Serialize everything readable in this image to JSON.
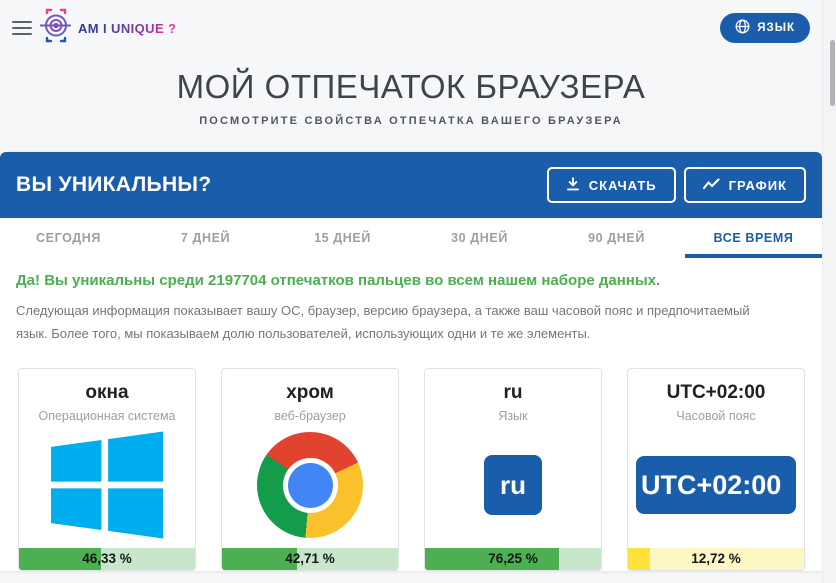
{
  "header": {
    "brand": "AM I UNIQUE ?",
    "language_button": "ЯЗЫК"
  },
  "hero": {
    "title": "МОЙ ОТПЕЧАТОК БРАУЗЕРА",
    "subtitle": "ПОСМОТРИТЕ СВОЙСТВА ОТПЕЧАТКА ВАШЕГО БРАУЗЕРА"
  },
  "panel": {
    "title": "ВЫ УНИКАЛЬНЫ?",
    "download_button": "СКАЧАТЬ",
    "chart_button": "ГРАФИК",
    "tabs": [
      {
        "label": "СЕГОДНЯ",
        "active": false
      },
      {
        "label": "7 ДНЕЙ",
        "active": false
      },
      {
        "label": "15 ДНЕЙ",
        "active": false
      },
      {
        "label": "30 ДНЕЙ",
        "active": false
      },
      {
        "label": "90 ДНЕЙ",
        "active": false
      },
      {
        "label": "ВСЕ ВРЕМЯ",
        "active": true
      }
    ],
    "result_message": "Да! Вы уникальны среди 2197704 отпечатков пальцев во всем нашем наборе данных.",
    "fingerprint_count": 2197704,
    "description": "Следующая информация показывает вашу ОС, браузер, версию браузера, а также ваш часовой пояс и предпочитаемый язык. Более того, мы показываем долю пользователей, использующих одни и те же элементы."
  },
  "cards": [
    {
      "title": "окна",
      "subtitle": "Операционная система",
      "icon": "windows-logo",
      "value": "46,33 %",
      "percent": 46.33,
      "scheme": "green"
    },
    {
      "title": "хром",
      "subtitle": "веб-браузер",
      "icon": "chrome-logo",
      "value": "42,71 %",
      "percent": 42.71,
      "scheme": "green"
    },
    {
      "title": "ru",
      "subtitle": "Язык",
      "icon": "language-badge",
      "badge_text": "ru",
      "value": "76,25 %",
      "percent": 76.25,
      "scheme": "green"
    },
    {
      "title": "UTC+02:00",
      "subtitle": "Часовой пояс",
      "icon": "timezone-badge",
      "badge_text": "UTC+02:00",
      "value": "12,72 %",
      "percent": 12.72,
      "scheme": "yellow"
    }
  ],
  "colors": {
    "accent_blue": "#1a5dab",
    "success_green": "#4caf50",
    "progress_green_track": "#c8e6c9",
    "progress_yellow": "#fde33b",
    "progress_yellow_track": "#fdf7c3",
    "windows_blue": "#00adef",
    "chrome_red": "#e2432f",
    "chrome_yellow": "#fbc12d",
    "chrome_green": "#149b4c",
    "chrome_blue": "#4285f4",
    "brand_gradient_start": "#2b3a91",
    "brand_gradient_end": "#ed3b8e"
  }
}
